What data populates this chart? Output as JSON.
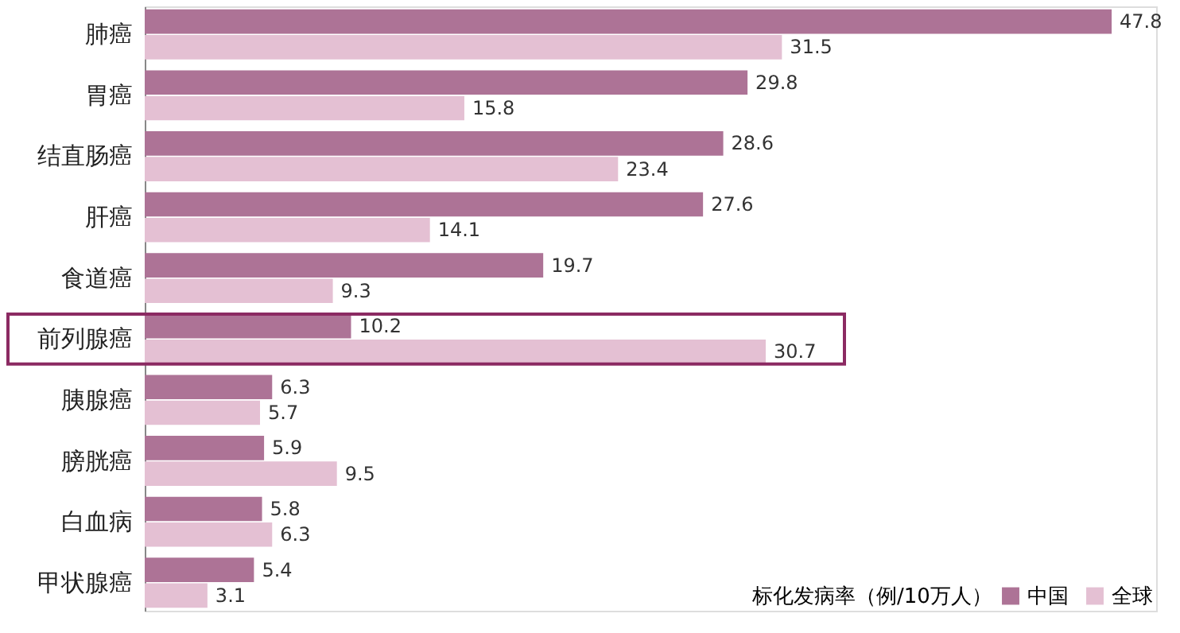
{
  "chart_data": {
    "type": "bar",
    "orientation": "horizontal",
    "legend_title": "标化发病率（例/10万人）",
    "categories": [
      "肺癌",
      "胃癌",
      "结直肠癌",
      "肝癌",
      "食道癌",
      "前列腺癌",
      "胰腺癌",
      "膀胱癌",
      "白血病",
      "甲状腺癌"
    ],
    "series": [
      {
        "name": "中国",
        "color": "#ad7396",
        "values": [
          47.8,
          29.8,
          28.6,
          27.6,
          19.7,
          10.2,
          6.3,
          5.9,
          5.8,
          5.4
        ]
      },
      {
        "name": "全球",
        "color": "#e4c0d3",
        "values": [
          31.5,
          15.8,
          23.4,
          14.1,
          9.3,
          30.7,
          5.7,
          9.5,
          6.3,
          3.1
        ]
      }
    ],
    "xlim": [
      0,
      50
    ],
    "tick_labels": "y",
    "data_labels": true,
    "grid": false,
    "legend": "bottom right"
  }
}
